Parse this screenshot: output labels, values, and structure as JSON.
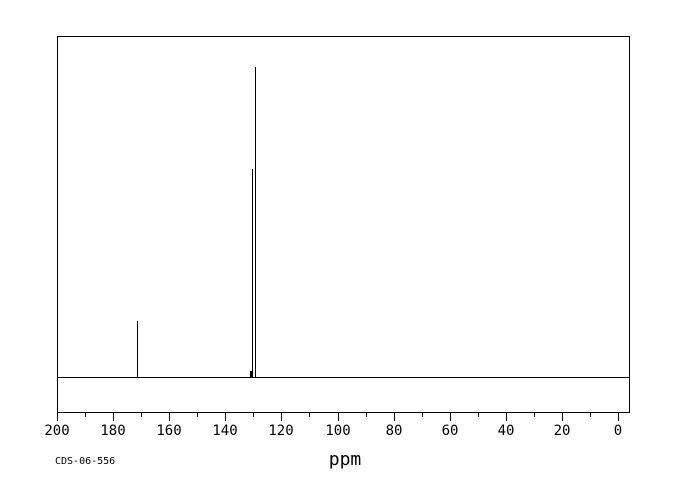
{
  "colors": {
    "background": "#ffffff",
    "line": "#000000"
  },
  "annotation": {
    "sample_id": "CDS-06-556"
  },
  "chart_data": {
    "type": "line",
    "subtype": "13C NMR spectrum",
    "title": "",
    "xlabel": "ppm",
    "ylabel": "",
    "grid": false,
    "legend_position": "none",
    "x_axis": {
      "min": 0,
      "max": 200,
      "inverted": true,
      "major_tick_interval": 20,
      "minor_tick_interval": 10,
      "major_tick_labels": [
        "200",
        "180",
        "160",
        "140",
        "120",
        "100",
        "80",
        "60",
        "40",
        "20",
        "0"
      ]
    },
    "y_axis": {
      "visible": false
    },
    "baseline": true,
    "peaks": [
      {
        "ppm": 171.5,
        "relative_intensity": 0.18
      },
      {
        "ppm": 131.2,
        "relative_intensity": 0.02
      },
      {
        "ppm": 130.6,
        "relative_intensity": 0.67
      },
      {
        "ppm": 129.3,
        "relative_intensity": 1.0
      }
    ]
  }
}
